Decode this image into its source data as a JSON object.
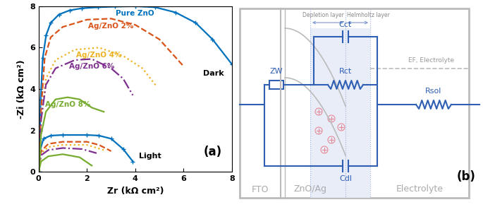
{
  "chart_data": {
    "type": "line",
    "xlabel": "Zr (kΩ cm²)",
    "ylabel": "-Zi (kΩ cm²)",
    "xlim": [
      0,
      8
    ],
    "ylim": [
      0,
      8
    ],
    "xticks": [
      0,
      2,
      4,
      6,
      8
    ],
    "yticks": [
      0,
      2,
      4,
      6,
      8
    ],
    "grid": false,
    "panel_label": "(a)",
    "condition_labels": {
      "dark": "Dark",
      "light": "Light"
    },
    "series": [
      {
        "name": "Pure ZnO",
        "color": "#0072BD",
        "line_style": "solid",
        "marker": "plus",
        "dark": {
          "x": [
            0.03,
            0.08,
            0.17,
            0.31,
            0.5,
            0.84,
            1.28,
            1.79,
            2.46,
            3.16,
            4.0,
            4.83,
            5.67,
            6.5,
            7.2,
            8.0
          ],
          "y": [
            0,
            3.5,
            5.5,
            6.6,
            7.2,
            7.6,
            7.8,
            7.9,
            7.95,
            7.98,
            8.0,
            7.95,
            7.7,
            7.2,
            6.4,
            5.2
          ]
        },
        "light": {
          "x": [
            0,
            0.05,
            0.2,
            0.5,
            1.0,
            2.0,
            2.5,
            3.0,
            3.5,
            3.9
          ],
          "y": [
            0,
            1.0,
            1.6,
            1.75,
            1.78,
            1.78,
            1.75,
            1.6,
            1.1,
            0.5
          ]
        }
      },
      {
        "name": "Ag/ZnO 2%",
        "color": "#D95319",
        "line_style": "dashed",
        "marker": "none",
        "dark": {
          "x": [
            0.02,
            0.1,
            0.25,
            0.5,
            1.0,
            2.0,
            3.0,
            4.0,
            5.0,
            6.0
          ],
          "y": [
            0,
            3.0,
            5.5,
            6.5,
            7.0,
            7.35,
            7.4,
            7.1,
            6.4,
            5.1
          ]
        },
        "light": {
          "x": [
            0,
            0.1,
            0.4,
            1.0,
            2.0,
            2.5,
            3.0
          ],
          "y": [
            0,
            1.0,
            1.35,
            1.45,
            1.45,
            1.3,
            1.0
          ]
        }
      },
      {
        "name": "Ag/ZnO 4%",
        "color": "#EDB120",
        "line_style": "dotted",
        "marker": "none",
        "dark": {
          "x": [
            0.02,
            0.1,
            0.3,
            0.7,
            1.5,
            2.5,
            3.5,
            4.3,
            4.9
          ],
          "y": [
            0,
            2.5,
            4.5,
            5.4,
            5.9,
            6.0,
            5.6,
            5.0,
            4.1
          ]
        },
        "light": {
          "x": [
            0,
            0.1,
            0.4,
            1.0,
            2.0,
            2.7
          ],
          "y": [
            0,
            0.9,
            1.2,
            1.3,
            1.3,
            1.05
          ]
        }
      },
      {
        "name": "Ag/ZnO 6%",
        "color": "#7E2F8E",
        "line_style": "dashdot",
        "marker": "none",
        "dark": {
          "x": [
            0.02,
            0.1,
            0.3,
            0.7,
            1.5,
            2.2,
            3.0,
            3.5,
            3.9
          ],
          "y": [
            0,
            2.5,
            4.2,
            5.0,
            5.4,
            5.45,
            5.0,
            4.5,
            3.7
          ]
        },
        "light": {
          "x": [
            0,
            0.1,
            0.4,
            1.0,
            1.8,
            2.4
          ],
          "y": [
            0,
            0.8,
            1.05,
            1.15,
            1.1,
            0.9
          ]
        }
      },
      {
        "name": "Ag/ZnO 8%",
        "color": "#77AC30",
        "line_style": "solid",
        "marker": "none",
        "dark": {
          "x": [
            0.02,
            0.1,
            0.3,
            0.7,
            1.2,
            1.7,
            2.2,
            2.7
          ],
          "y": [
            0,
            1.8,
            2.9,
            3.5,
            3.6,
            3.5,
            3.1,
            2.9
          ]
        },
        "light": {
          "x": [
            0,
            0.1,
            0.4,
            1.0,
            1.7,
            2.2
          ],
          "y": [
            0,
            0.5,
            0.75,
            0.85,
            0.7,
            0.3
          ]
        }
      }
    ]
  },
  "diagram": {
    "panel_label": "(b)",
    "regions": [
      "FTO",
      "ZnO/Ag",
      "Electrolyte"
    ],
    "layers": [
      "Depletion layer",
      "Helmholtz layer"
    ],
    "fermi_level": "EF, Electrolyte",
    "elements": {
      "warburg": "ZW",
      "charge_transfer_capacitance": "Cct",
      "charge_transfer_resistance": "Rct",
      "double_layer_capacitance": "Cdl",
      "solution_resistance": "Rsol"
    }
  }
}
